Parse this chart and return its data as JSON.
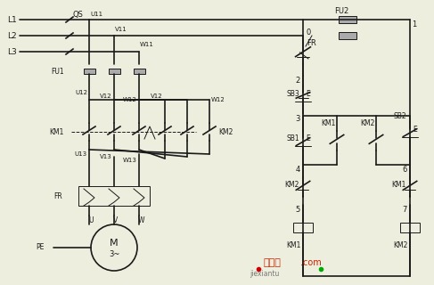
{
  "bg_color": "#eeeedf",
  "line_color": "#1a1a1a",
  "line_width": 1.2,
  "thin_line": 0.7,
  "watermark1": "接线图",
  "watermark2": ".com",
  "watermark3": "jiexiantu"
}
